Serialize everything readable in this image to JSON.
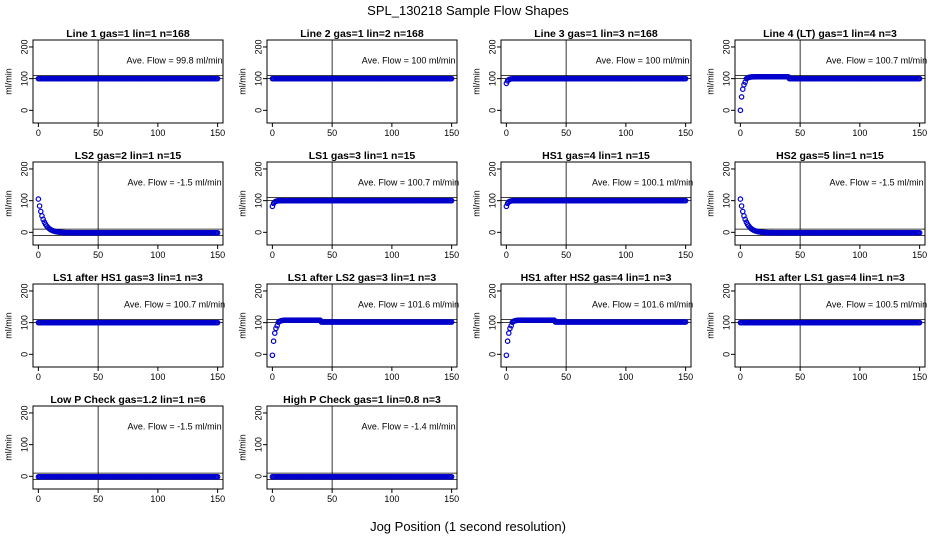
{
  "figure": {
    "title": "SPL_130218  Sample Flow Shapes",
    "xlabel": "Jog Position (1 second resolution)"
  },
  "colors": {
    "points": "#0000cc",
    "axes": "#000000",
    "background": "#ffffff"
  },
  "chart_data": [
    {
      "type": "scatter",
      "title": "Line 1 gas=1 lin=1 n=168",
      "annotation": "Ave. Flow =  99.8  ml/min",
      "ylabel": "ml/min",
      "xlim": [
        0,
        150
      ],
      "ylim": [
        0,
        200
      ],
      "xticks": [
        "0",
        "50",
        "100",
        "150"
      ],
      "yticks": [
        "0",
        "100",
        "200"
      ],
      "hlines": [
        100,
        110
      ],
      "vline": 50,
      "shape": "flat",
      "level": 100
    },
    {
      "type": "scatter",
      "title": "Line 2 gas=1 lin=2 n=168",
      "annotation": "Ave. Flow =  100  ml/min",
      "ylabel": "ml/min",
      "xlim": [
        0,
        150
      ],
      "ylim": [
        0,
        200
      ],
      "xticks": [
        "0",
        "50",
        "100",
        "150"
      ],
      "yticks": [
        "0",
        "100",
        "200"
      ],
      "hlines": [
        100,
        110
      ],
      "vline": 50,
      "shape": "flat",
      "level": 100
    },
    {
      "type": "scatter",
      "title": "Line 3 gas=1 lin=3 n=168",
      "annotation": "Ave. Flow =  100  ml/min",
      "ylabel": "ml/min",
      "xlim": [
        0,
        150
      ],
      "ylim": [
        0,
        200
      ],
      "xticks": [
        "0",
        "50",
        "100",
        "150"
      ],
      "yticks": [
        "0",
        "100",
        "200"
      ],
      "hlines": [
        100,
        110
      ],
      "vline": 50,
      "shape": "rise",
      "level": 100,
      "start": 85
    },
    {
      "type": "scatter",
      "title": "Line 4 (LT) gas=1 lin=4 n=3",
      "annotation": "Ave. Flow =  100.7  ml/min",
      "ylabel": "ml/min",
      "xlim": [
        0,
        150
      ],
      "ylim": [
        0,
        200
      ],
      "xticks": [
        "0",
        "50",
        "100",
        "150"
      ],
      "yticks": [
        "0",
        "100",
        "200"
      ],
      "hlines": [
        100,
        110
      ],
      "vline": 50,
      "shape": "rise",
      "level": 100,
      "start": 0
    },
    {
      "type": "scatter",
      "title": "LS2 gas=2 lin=1 n=15",
      "annotation": "Ave. Flow =  -1.5  ml/min",
      "ylabel": "ml/min",
      "xlim": [
        0,
        150
      ],
      "ylim": [
        0,
        200
      ],
      "xticks": [
        "0",
        "50",
        "100",
        "150"
      ],
      "yticks": [
        "0",
        "100",
        "200"
      ],
      "hlines": [
        -10,
        10
      ],
      "vline": 50,
      "shape": "decay",
      "level": -1.5,
      "start": 105
    },
    {
      "type": "scatter",
      "title": "LS1 gas=3 lin=1 n=15",
      "annotation": "Ave. Flow =  100.7  ml/min",
      "ylabel": "ml/min",
      "xlim": [
        0,
        150
      ],
      "ylim": [
        0,
        200
      ],
      "xticks": [
        "0",
        "50",
        "100",
        "150"
      ],
      "yticks": [
        "0",
        "100",
        "200"
      ],
      "hlines": [
        100,
        110
      ],
      "vline": 50,
      "shape": "rise",
      "level": 100,
      "start": 82
    },
    {
      "type": "scatter",
      "title": "HS1 gas=4 lin=1 n=15",
      "annotation": "Ave. Flow =  100.1  ml/min",
      "ylabel": "ml/min",
      "xlim": [
        0,
        150
      ],
      "ylim": [
        0,
        200
      ],
      "xticks": [
        "0",
        "50",
        "100",
        "150"
      ],
      "yticks": [
        "0",
        "100",
        "200"
      ],
      "hlines": [
        100,
        110
      ],
      "vline": 50,
      "shape": "rise",
      "level": 100,
      "start": 82
    },
    {
      "type": "scatter",
      "title": "HS2 gas=5 lin=1 n=15",
      "annotation": "Ave. Flow =  -1.5  ml/min",
      "ylabel": "ml/min",
      "xlim": [
        0,
        150
      ],
      "ylim": [
        0,
        200
      ],
      "xticks": [
        "0",
        "50",
        "100",
        "150"
      ],
      "yticks": [
        "0",
        "100",
        "200"
      ],
      "hlines": [
        -10,
        10
      ],
      "vline": 50,
      "shape": "decay",
      "level": -1.5,
      "start": 105
    },
    {
      "type": "scatter",
      "title": "LS1 after HS1 gas=3 lin=1 n=3",
      "annotation": "Ave. Flow =  100.7  ml/min",
      "ylabel": "ml/min",
      "xlim": [
        0,
        150
      ],
      "ylim": [
        0,
        200
      ],
      "xticks": [
        "0",
        "50",
        "100",
        "150"
      ],
      "yticks": [
        "0",
        "100",
        "200"
      ],
      "hlines": [
        100,
        110
      ],
      "vline": 50,
      "shape": "flat",
      "level": 100
    },
    {
      "type": "scatter",
      "title": "LS1 after LS2 gas=3 lin=1 n=3",
      "annotation": "Ave. Flow =  101.6  ml/min",
      "ylabel": "ml/min",
      "xlim": [
        0,
        150
      ],
      "ylim": [
        0,
        200
      ],
      "xticks": [
        "0",
        "50",
        "100",
        "150"
      ],
      "yticks": [
        "0",
        "100",
        "200"
      ],
      "hlines": [
        100,
        110
      ],
      "vline": 50,
      "shape": "rise",
      "level": 102,
      "start": -3
    },
    {
      "type": "scatter",
      "title": "HS1 after HS2 gas=4 lin=1 n=3",
      "annotation": "Ave. Flow =  101.6  ml/min",
      "ylabel": "ml/min",
      "xlim": [
        0,
        150
      ],
      "ylim": [
        0,
        200
      ],
      "xticks": [
        "0",
        "50",
        "100",
        "150"
      ],
      "yticks": [
        "0",
        "100",
        "200"
      ],
      "hlines": [
        100,
        110
      ],
      "vline": 50,
      "shape": "rise",
      "level": 102,
      "start": -3
    },
    {
      "type": "scatter",
      "title": "HS1 after LS1 gas=4 lin=1 n=3",
      "annotation": "Ave. Flow =  100.5  ml/min",
      "ylabel": "ml/min",
      "xlim": [
        0,
        150
      ],
      "ylim": [
        0,
        200
      ],
      "xticks": [
        "0",
        "50",
        "100",
        "150"
      ],
      "yticks": [
        "0",
        "100",
        "200"
      ],
      "hlines": [
        100,
        110
      ],
      "vline": 50,
      "shape": "flat",
      "level": 100
    },
    {
      "type": "scatter",
      "title": "Low P Check gas=1.2 lin=1 n=6",
      "annotation": "Ave. Flow =  -1.5  ml/min",
      "ylabel": "ml/min",
      "xlim": [
        0,
        150
      ],
      "ylim": [
        0,
        200
      ],
      "xticks": [
        "0",
        "50",
        "100",
        "150"
      ],
      "yticks": [
        "0",
        "100",
        "200"
      ],
      "hlines": [
        -10,
        10
      ],
      "vline": 50,
      "shape": "flat",
      "level": -1.5
    },
    {
      "type": "scatter",
      "title": "High P Check gas=1 lin=0.8 n=3",
      "annotation": "Ave. Flow =  -1.4  ml/min",
      "ylabel": "ml/min",
      "xlim": [
        0,
        150
      ],
      "ylim": [
        0,
        200
      ],
      "xticks": [
        "0",
        "50",
        "100",
        "150"
      ],
      "yticks": [
        "0",
        "100",
        "200"
      ],
      "hlines": [
        -10,
        10
      ],
      "vline": 50,
      "shape": "flat",
      "level": -1.4
    }
  ]
}
